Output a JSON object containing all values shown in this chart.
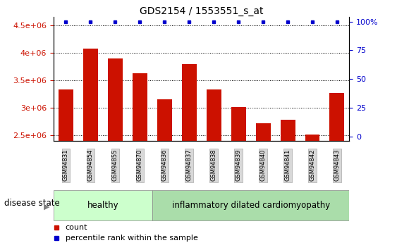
{
  "title": "GDS2154 / 1553551_s_at",
  "samples": [
    "GSM94831",
    "GSM94854",
    "GSM94855",
    "GSM94870",
    "GSM94836",
    "GSM94837",
    "GSM94838",
    "GSM94839",
    "GSM94840",
    "GSM94841",
    "GSM94842",
    "GSM94843"
  ],
  "counts": [
    3340000,
    4080000,
    3900000,
    3630000,
    3150000,
    3790000,
    3340000,
    3010000,
    2720000,
    2780000,
    2520000,
    3270000
  ],
  "percentile_ranks": [
    100,
    100,
    100,
    100,
    100,
    100,
    100,
    100,
    100,
    100,
    100,
    100
  ],
  "disease_groups": [
    {
      "label": "healthy",
      "start": 0,
      "end": 4
    },
    {
      "label": "inflammatory dilated cardiomyopathy",
      "start": 4,
      "end": 12
    }
  ],
  "ylim_left": [
    2400000,
    4650000
  ],
  "ylim_right": [
    -4,
    104
  ],
  "yticks_left": [
    2500000,
    3000000,
    3500000,
    4000000,
    4500000
  ],
  "ytick_labels_left": [
    "2.5e+06",
    "3e+06",
    "3.5e+06",
    "4e+06",
    "4.5e+06"
  ],
  "yticks_right": [
    0,
    25,
    50,
    75,
    100
  ],
  "ytick_labels_right": [
    "0",
    "25",
    "50",
    "75",
    "100%"
  ],
  "bar_color": "#cc1100",
  "dot_color": "#0000cc",
  "healthy_bg": "#ccffcc",
  "disease_bg": "#aaddaa",
  "label_bg": "#d8d8d8",
  "grid_color": "#000000",
  "title_fontsize": 10,
  "tick_fontsize": 8,
  "legend_fontsize": 8,
  "disease_state_fontsize": 8.5
}
